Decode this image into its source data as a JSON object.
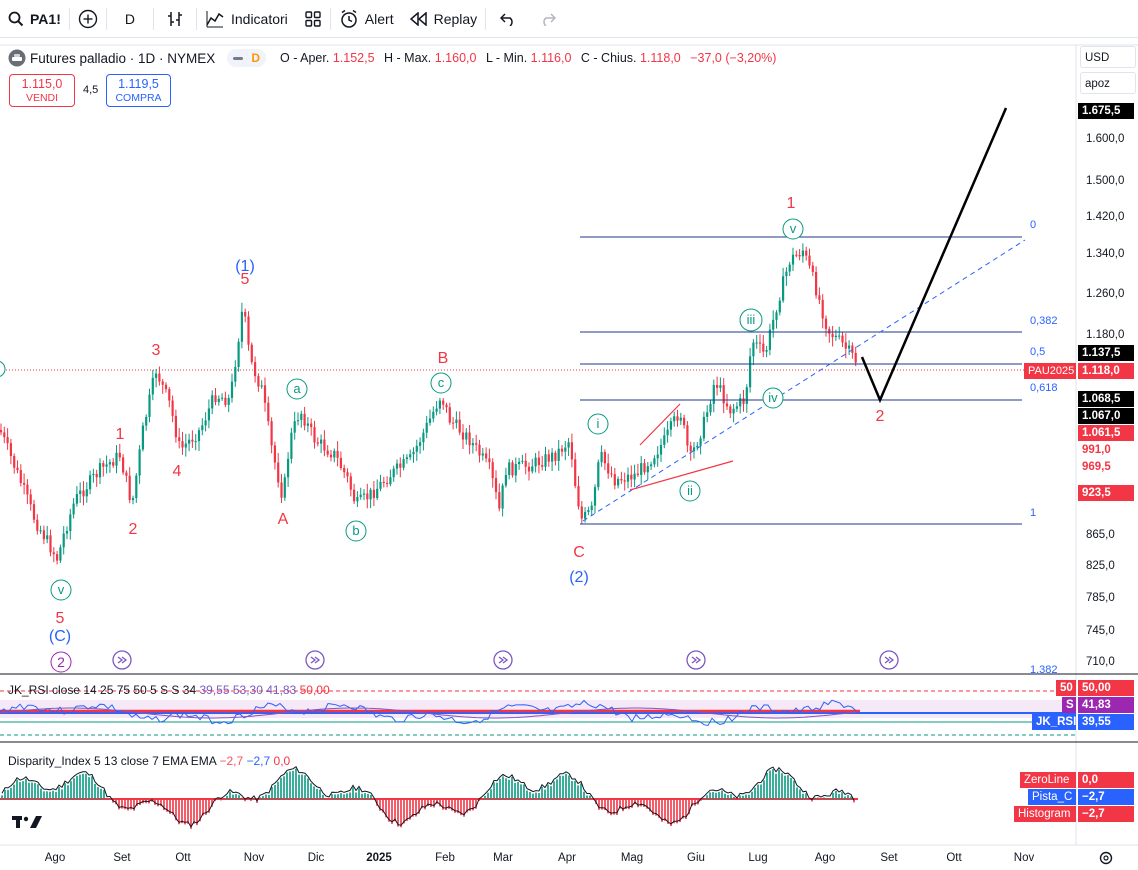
{
  "toolbar": {
    "symbol": "PA1!",
    "interval": "D",
    "indicators_label": "Indicatori",
    "alert_label": "Alert",
    "replay_label": "Replay",
    "icons": [
      "search-icon",
      "add-symbol-icon",
      "bar-style-icon",
      "indicators-icon",
      "layouts-icon",
      "alert-icon",
      "replay-icon",
      "undo-icon",
      "redo-icon"
    ]
  },
  "legend": {
    "title": "Futures palladio · 1D · NYMEX",
    "market_status": "D",
    "ohlc": [
      {
        "label": "O - Aper.",
        "value": "1.152,5"
      },
      {
        "label": "H - Max.",
        "value": "1.160,0"
      },
      {
        "label": "L - Min.",
        "value": "1.116,0"
      },
      {
        "label": "C - Chius.",
        "value": "1.118,0"
      },
      {
        "label": "",
        "value": "−37,0 (−3,20%)"
      }
    ]
  },
  "trade": {
    "sell_price": "1.115,0",
    "sell_label": "VENDI",
    "spread": "4,5",
    "buy_price": "1.119,5",
    "buy_label": "COMPRA"
  },
  "scale": {
    "currency": "USD",
    "mode": "apoz",
    "price_ticks": [
      "1.675,5",
      "1.600,0",
      "1.500,0",
      "1.420,0",
      "1.340,0",
      "1.260,0",
      "1.180,0",
      "865,0",
      "825,0",
      "785,0",
      "745,0",
      "710,0"
    ],
    "tags": [
      {
        "text": "1.675,5",
        "bg": "#000000",
        "fg": "#ffffff"
      },
      {
        "text": "1.137,5",
        "bg": "#000000",
        "fg": "#ffffff"
      },
      {
        "text": "PAU2025",
        "bg": "#f23645",
        "fg": "#ffffff"
      },
      {
        "text": "1.118,0",
        "bg": "#f23645",
        "fg": "#ffffff"
      },
      {
        "text": "1.068,5",
        "bg": "#000000",
        "fg": "#ffffff"
      },
      {
        "text": "1.067,0",
        "bg": "#000000",
        "fg": "#ffffff"
      },
      {
        "text": "1.061,5",
        "bg": "#f23645",
        "fg": "#ffffff"
      },
      {
        "text": "991,0",
        "bg": "#ffffff",
        "fg": "#f23645"
      },
      {
        "text": "969,5",
        "bg": "#ffffff",
        "fg": "#f23645"
      },
      {
        "text": "923,5",
        "bg": "#f23645",
        "fg": "#ffffff"
      }
    ]
  },
  "fib_levels": [
    "0",
    "0,382",
    "0,5",
    "0,618",
    "1",
    "1,382"
  ],
  "wave_labels": {
    "red": [
      "5",
      "3",
      "1",
      "4",
      "2",
      "A",
      "B",
      "C",
      "1",
      "2",
      "5"
    ],
    "blue": [
      "(1)",
      "(2)",
      "(C)"
    ],
    "green": [
      "v",
      "a",
      "b",
      "c",
      "i",
      "ii",
      "iii",
      "iv",
      "v"
    ],
    "purple": [
      "2"
    ]
  },
  "time_axis": [
    "Ago",
    "Set",
    "Ott",
    "Nov",
    "Dic",
    "2025",
    "Feb",
    "Mar",
    "Apr",
    "Mag",
    "Giu",
    "Lug",
    "Ago",
    "Set",
    "Ott",
    "Nov"
  ],
  "rsi": {
    "name": "JK_RSI close 14 25 75 50 5 S S 34",
    "values": [
      "39,55",
      "53,30",
      "41,83",
      "50,00"
    ],
    "tags": [
      {
        "label": "50",
        "value": "50,00",
        "color": "#f23645"
      },
      {
        "label": "S",
        "value": "41,83",
        "color": "#9c27b0"
      },
      {
        "label": "JK_RSI",
        "value": "39,55",
        "color": "#2962ff"
      }
    ]
  },
  "disparity": {
    "name": "Disparity_Index 5 13 close 7 EMA EMA",
    "values": [
      "−2,7",
      "−2,7",
      "0,0"
    ],
    "tags": [
      {
        "label": "ZeroLine",
        "value": "0,0",
        "color": "#f23645"
      },
      {
        "label": "Pista_C",
        "value": "−2,7",
        "color": "#2962ff"
      },
      {
        "label": "Histogram",
        "value": "−2,7",
        "color": "#f23645"
      }
    ]
  },
  "colors": {
    "up": "#089981",
    "down": "#f23645",
    "wave_red": "#f23645",
    "wave_blue": "#2962ff",
    "wave_green": "#089981",
    "fib": "#1e3a8a"
  }
}
